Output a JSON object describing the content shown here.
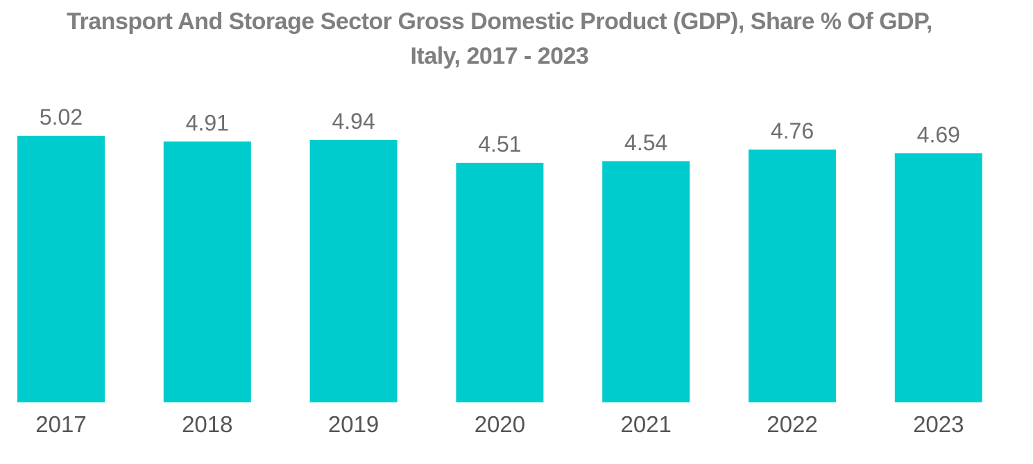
{
  "chart_data": {
    "type": "bar",
    "title_line1": "Transport And Storage Sector Gross Domestic Product (GDP), Share % Of GDP,",
    "title_line2": "Italy, 2017 - 2023",
    "categories": [
      "2017",
      "2018",
      "2019",
      "2020",
      "2021",
      "2022",
      "2023"
    ],
    "values": [
      5.02,
      4.91,
      4.94,
      4.51,
      4.54,
      4.76,
      4.69
    ],
    "value_labels": [
      "5.02",
      "4.91",
      "4.94",
      "4.51",
      "4.54",
      "4.76",
      "4.69"
    ],
    "xlabel": "",
    "ylabel": "",
    "ylim": [
      0,
      5.02
    ],
    "grid": false,
    "legend": "none",
    "bar_color": "#00ccce"
  }
}
